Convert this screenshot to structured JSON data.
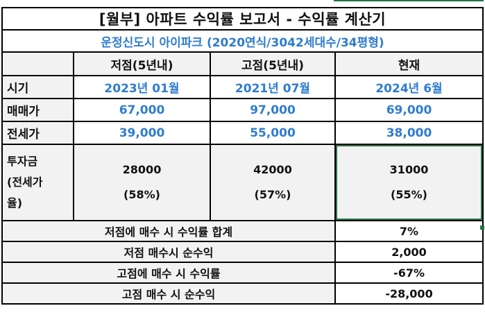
{
  "title": "[월부] 아파트 수익률 보고서 - 수익률 계산기",
  "subtitle": "운정신도시 아이파크 (2020연식/3042세대수/34평형)",
  "columns": [
    "저점(5년내)",
    "고점(5년내)",
    "현재"
  ],
  "rows": {
    "period": {
      "label": "시기",
      "values": [
        "2023년 01월",
        "2021년 07월",
        "2024년 6월"
      ]
    },
    "sale": {
      "label": "매매가",
      "values": [
        "67,000",
        "97,000",
        "69,000"
      ]
    },
    "jeonse": {
      "label": "전세가",
      "values": [
        "39,000",
        "55,000",
        "38,000"
      ]
    },
    "invest": {
      "label_lines": [
        "투자금",
        "(전세가",
        "율)"
      ],
      "amounts": [
        "28000",
        "42000",
        "31000"
      ],
      "ratios": [
        "(58%)",
        "(57%)",
        "(55%)"
      ]
    }
  },
  "summary": [
    {
      "label": "저점에 매수 시 수익률 합계",
      "value": "7%"
    },
    {
      "label": "저점 매수시 순수익",
      "value": "2,000"
    },
    {
      "label": "고점에 매수 시 수익률",
      "value": "-67%"
    },
    {
      "label": "고점 매수 시 순수익",
      "value": "-28,000"
    }
  ],
  "colors": {
    "accent_blue": "#2e7ccf",
    "selection_green": "#217346",
    "header_gray": "#f2f2f2"
  }
}
